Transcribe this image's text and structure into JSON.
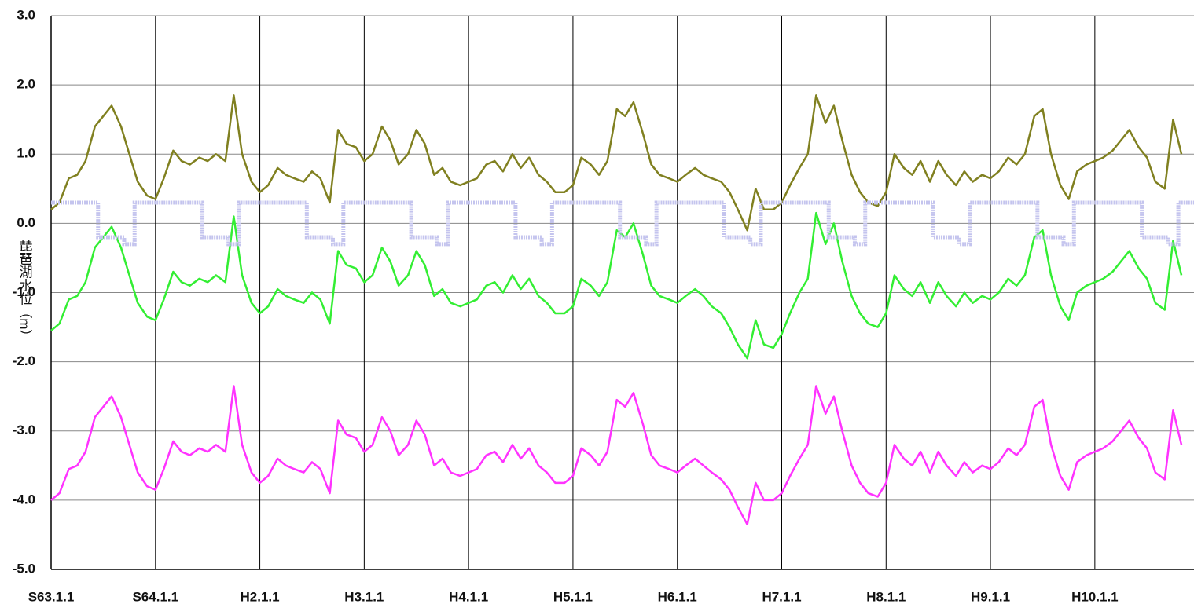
{
  "chart_data": {
    "type": "line",
    "y_label": "琵琶湖水位（m）",
    "x": [
      0,
      0.08,
      0.17,
      0.25,
      0.33,
      0.42,
      0.5,
      0.58,
      0.67,
      0.75,
      0.83,
      0.92,
      1,
      1.08,
      1.17,
      1.25,
      1.33,
      1.42,
      1.5,
      1.58,
      1.67,
      1.75,
      1.83,
      1.92,
      2,
      2.08,
      2.17,
      2.25,
      2.33,
      2.42,
      2.5,
      2.58,
      2.67,
      2.75,
      2.83,
      2.92,
      3,
      3.08,
      3.17,
      3.25,
      3.33,
      3.42,
      3.5,
      3.58,
      3.67,
      3.75,
      3.83,
      3.92,
      4,
      4.08,
      4.17,
      4.25,
      4.33,
      4.42,
      4.5,
      4.58,
      4.67,
      4.75,
      4.83,
      4.92,
      5,
      5.08,
      5.17,
      5.25,
      5.33,
      5.42,
      5.5,
      5.58,
      5.67,
      5.75,
      5.83,
      5.92,
      6,
      6.08,
      6.17,
      6.25,
      6.33,
      6.42,
      6.5,
      6.58,
      6.67,
      6.75,
      6.83,
      6.92,
      7,
      7.08,
      7.17,
      7.25,
      7.33,
      7.42,
      7.5,
      7.58,
      7.67,
      7.75,
      7.83,
      7.92,
      8,
      8.08,
      8.17,
      8.25,
      8.33,
      8.42,
      8.5,
      8.58,
      8.67,
      8.75,
      8.83,
      8.92,
      9,
      9.08,
      9.17,
      9.25,
      9.33,
      9.42,
      9.5,
      9.58,
      9.67,
      9.75,
      9.83,
      9.92,
      10,
      10.08,
      10.17,
      10.25,
      10.33,
      10.42,
      10.5,
      10.58,
      10.67,
      10.75,
      10.83
    ],
    "series": [
      {
        "color": "#808020",
        "values": [
          0.2,
          0.3,
          0.65,
          0.7,
          0.9,
          1.4,
          1.55,
          1.7,
          1.4,
          1.0,
          0.6,
          0.4,
          0.35,
          0.65,
          1.05,
          0.9,
          0.85,
          0.95,
          0.9,
          1.0,
          0.9,
          1.85,
          1.0,
          0.6,
          0.45,
          0.55,
          0.8,
          0.7,
          0.65,
          0.6,
          0.75,
          0.65,
          0.3,
          1.35,
          1.15,
          1.1,
          0.9,
          1.0,
          1.4,
          1.2,
          0.85,
          1.0,
          1.35,
          1.15,
          0.7,
          0.8,
          0.6,
          0.55,
          0.6,
          0.65,
          0.85,
          0.9,
          0.75,
          1.0,
          0.8,
          0.95,
          0.7,
          0.6,
          0.45,
          0.45,
          0.55,
          0.95,
          0.85,
          0.7,
          0.9,
          1.65,
          1.55,
          1.75,
          1.3,
          0.85,
          0.7,
          0.65,
          0.6,
          0.7,
          0.8,
          0.7,
          0.65,
          0.6,
          0.45,
          0.2,
          -0.1,
          0.5,
          0.2,
          0.2,
          0.3,
          0.55,
          0.8,
          1.0,
          1.85,
          1.45,
          1.7,
          1.2,
          0.7,
          0.45,
          0.3,
          0.25,
          0.45,
          1.0,
          0.8,
          0.7,
          0.9,
          0.6,
          0.9,
          0.7,
          0.55,
          0.75,
          0.6,
          0.7,
          0.65,
          0.75,
          0.95,
          0.85,
          1.0,
          1.55,
          1.65,
          1.0,
          0.55,
          0.35,
          0.75,
          0.85,
          0.9,
          0.95,
          1.05,
          1.2,
          1.35,
          1.1,
          0.95,
          0.6,
          0.5,
          1.5,
          1.0
        ]
      },
      {
        "color": "#33ee33",
        "values": [
          -1.55,
          -1.45,
          -1.1,
          -1.05,
          -0.85,
          -0.35,
          -0.2,
          -0.05,
          -0.35,
          -0.75,
          -1.15,
          -1.35,
          -1.4,
          -1.1,
          -0.7,
          -0.85,
          -0.9,
          -0.8,
          -0.85,
          -0.75,
          -0.85,
          0.1,
          -0.75,
          -1.15,
          -1.3,
          -1.2,
          -0.95,
          -1.05,
          -1.1,
          -1.15,
          -1.0,
          -1.1,
          -1.45,
          -0.4,
          -0.6,
          -0.65,
          -0.85,
          -0.75,
          -0.35,
          -0.55,
          -0.9,
          -0.75,
          -0.4,
          -0.6,
          -1.05,
          -0.95,
          -1.15,
          -1.2,
          -1.15,
          -1.1,
          -0.9,
          -0.85,
          -1.0,
          -0.75,
          -0.95,
          -0.8,
          -1.05,
          -1.15,
          -1.3,
          -1.3,
          -1.2,
          -0.8,
          -0.9,
          -1.05,
          -0.85,
          -0.1,
          -0.2,
          0.0,
          -0.45,
          -0.9,
          -1.05,
          -1.1,
          -1.15,
          -1.05,
          -0.95,
          -1.05,
          -1.2,
          -1.3,
          -1.5,
          -1.75,
          -1.95,
          -1.4,
          -1.75,
          -1.8,
          -1.6,
          -1.3,
          -1.0,
          -0.8,
          0.15,
          -0.3,
          0.0,
          -0.55,
          -1.05,
          -1.3,
          -1.45,
          -1.5,
          -1.3,
          -0.75,
          -0.95,
          -1.05,
          -0.85,
          -1.15,
          -0.85,
          -1.05,
          -1.2,
          -1.0,
          -1.15,
          -1.05,
          -1.1,
          -1.0,
          -0.8,
          -0.9,
          -0.75,
          -0.2,
          -0.1,
          -0.75,
          -1.2,
          -1.4,
          -1.0,
          -0.9,
          -0.85,
          -0.8,
          -0.7,
          -0.55,
          -0.4,
          -0.65,
          -0.8,
          -1.15,
          -1.25,
          -0.25,
          -0.75
        ]
      },
      {
        "color": "#ff33ff",
        "values": [
          -4.0,
          -3.9,
          -3.55,
          -3.5,
          -3.3,
          -2.8,
          -2.65,
          -2.5,
          -2.8,
          -3.2,
          -3.6,
          -3.8,
          -3.85,
          -3.55,
          -3.15,
          -3.3,
          -3.35,
          -3.25,
          -3.3,
          -3.2,
          -3.3,
          -2.35,
          -3.2,
          -3.6,
          -3.75,
          -3.65,
          -3.4,
          -3.5,
          -3.55,
          -3.6,
          -3.45,
          -3.55,
          -3.9,
          -2.85,
          -3.05,
          -3.1,
          -3.3,
          -3.2,
          -2.8,
          -3.0,
          -3.35,
          -3.2,
          -2.85,
          -3.05,
          -3.5,
          -3.4,
          -3.6,
          -3.65,
          -3.6,
          -3.55,
          -3.35,
          -3.3,
          -3.45,
          -3.2,
          -3.4,
          -3.25,
          -3.5,
          -3.6,
          -3.75,
          -3.75,
          -3.65,
          -3.25,
          -3.35,
          -3.5,
          -3.3,
          -2.55,
          -2.65,
          -2.45,
          -2.9,
          -3.35,
          -3.5,
          -3.55,
          -3.6,
          -3.5,
          -3.4,
          -3.5,
          -3.6,
          -3.7,
          -3.85,
          -4.1,
          -4.35,
          -3.75,
          -4.0,
          -4.0,
          -3.9,
          -3.65,
          -3.4,
          -3.2,
          -2.35,
          -2.75,
          -2.5,
          -3.0,
          -3.5,
          -3.75,
          -3.9,
          -3.95,
          -3.75,
          -3.2,
          -3.4,
          -3.5,
          -3.3,
          -3.6,
          -3.3,
          -3.5,
          -3.65,
          -3.45,
          -3.6,
          -3.5,
          -3.55,
          -3.45,
          -3.25,
          -3.35,
          -3.2,
          -2.65,
          -2.55,
          -3.2,
          -3.65,
          -3.85,
          -3.45,
          -3.35,
          -3.3,
          -3.25,
          -3.15,
          -3.0,
          -2.85,
          -3.1,
          -3.25,
          -3.6,
          -3.7,
          -2.7,
          -3.2
        ]
      },
      {
        "color": "#c4c4ee",
        "step": "after",
        "x": [
          0,
          0.45,
          0.7,
          0.8,
          1,
          1.45,
          1.7,
          1.8,
          2,
          2.45,
          2.7,
          2.8,
          3,
          3.45,
          3.7,
          3.8,
          4,
          4.45,
          4.7,
          4.8,
          5,
          5.45,
          5.7,
          5.8,
          6,
          6.45,
          6.7,
          6.8,
          7,
          7.45,
          7.7,
          7.8,
          8,
          8.45,
          8.7,
          8.8,
          9,
          9.45,
          9.7,
          9.8,
          10,
          10.45,
          10.7,
          10.8
        ],
        "values": [
          0.3,
          -0.2,
          -0.3,
          0.3,
          0.3,
          -0.2,
          -0.3,
          0.3,
          0.3,
          -0.2,
          -0.3,
          0.3,
          0.3,
          -0.2,
          -0.3,
          0.3,
          0.3,
          -0.2,
          -0.3,
          0.3,
          0.3,
          -0.2,
          -0.3,
          0.3,
          0.3,
          -0.2,
          -0.3,
          0.3,
          0.3,
          -0.2,
          -0.3,
          0.3,
          0.3,
          -0.2,
          -0.3,
          0.3,
          0.3,
          -0.2,
          -0.3,
          0.3,
          0.3,
          -0.2,
          -0.3,
          0.3
        ]
      }
    ],
    "xlim": [
      0,
      10.95
    ],
    "xticks": [
      {
        "value": 0,
        "label": "S63.1.1"
      },
      {
        "value": 1,
        "label": "S64.1.1"
      },
      {
        "value": 2,
        "label": "H2.1.1"
      },
      {
        "value": 3,
        "label": "H3.1.1"
      },
      {
        "value": 4,
        "label": "H4.1.1"
      },
      {
        "value": 5,
        "label": "H5.1.1"
      },
      {
        "value": 6,
        "label": "H6.1.1"
      },
      {
        "value": 7,
        "label": "H7.1.1"
      },
      {
        "value": 8,
        "label": "H8.1.1"
      },
      {
        "value": 9,
        "label": "H9.1.1"
      },
      {
        "value": 10,
        "label": "H10.1.1"
      }
    ],
    "ylim": [
      -5,
      3
    ],
    "yticks": [
      {
        "value": 3,
        "label": "3.0"
      },
      {
        "value": 2,
        "label": "2.0"
      },
      {
        "value": 1,
        "label": "1.0"
      },
      {
        "value": 0,
        "label": "0.0"
      },
      {
        "value": -1,
        "label": "-1.0"
      },
      {
        "value": -2,
        "label": "-2.0"
      },
      {
        "value": -3,
        "label": "-3.0"
      },
      {
        "value": -4,
        "label": "-4.0"
      },
      {
        "value": -5,
        "label": "-5.0"
      }
    ],
    "grid": true
  }
}
